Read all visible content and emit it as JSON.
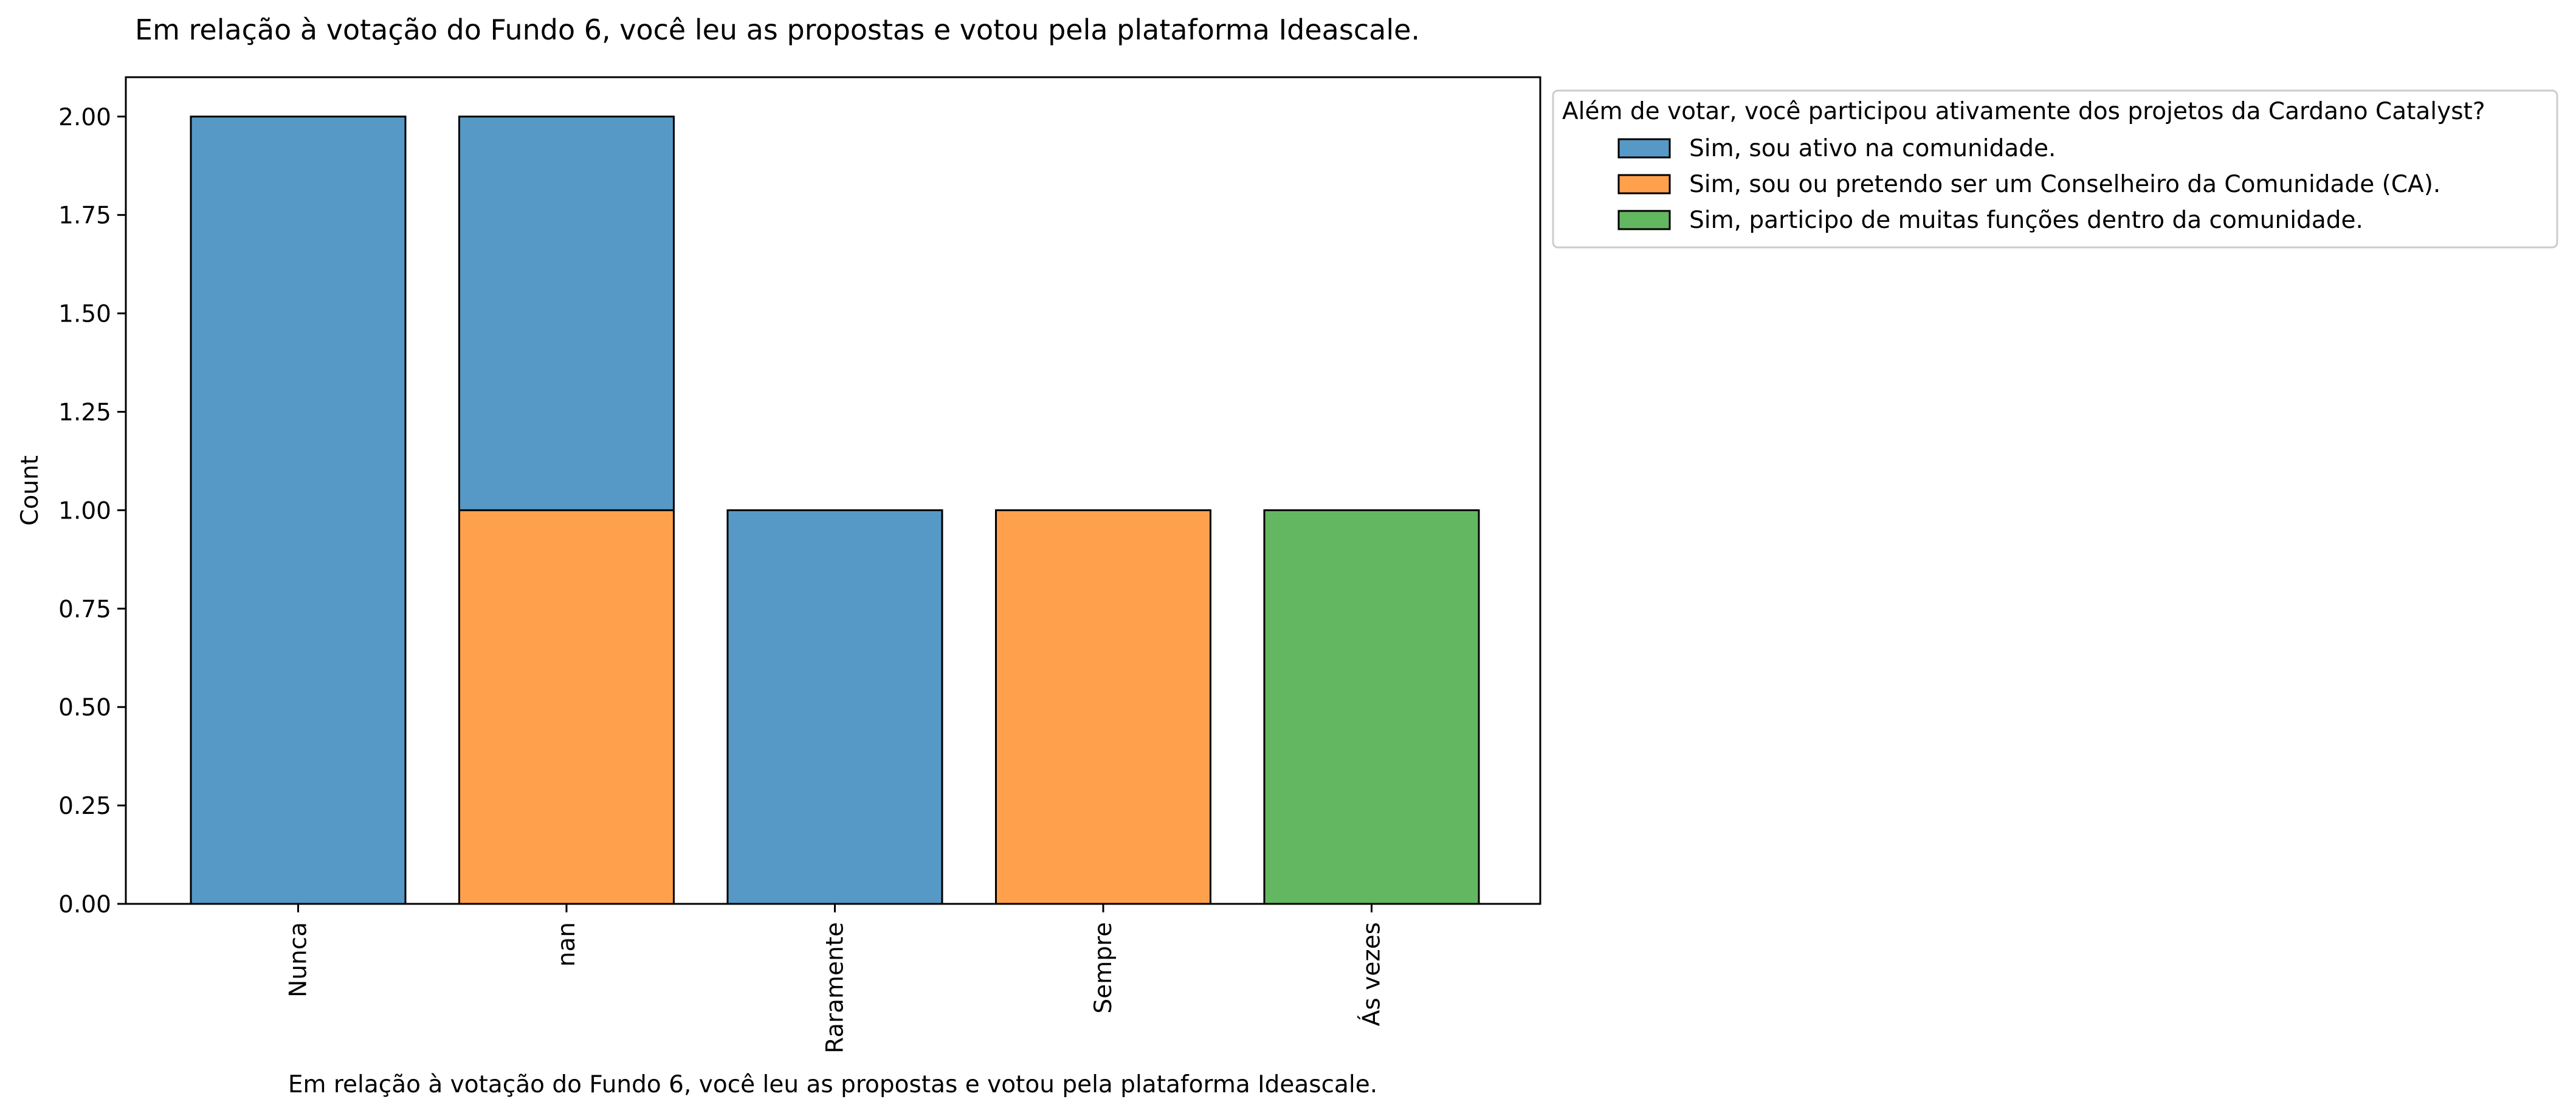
{
  "chart_data": {
    "type": "bar",
    "stacked": true,
    "title": "Em relação à votação do Fundo 6, você leu as propostas e votou pela plataforma Ideascale.",
    "xlabel": "Em relação à votação do Fundo 6, você leu as propostas e votou pela plataforma Ideascale.",
    "ylabel": "Count",
    "ylim": [
      0,
      2.1
    ],
    "yticks": [
      "0.00",
      "0.25",
      "0.50",
      "0.75",
      "1.00",
      "1.25",
      "1.50",
      "1.75",
      "2.00"
    ],
    "categories": [
      "Nunca",
      "nan",
      "Raramente",
      "Sempre",
      "Ás vezes"
    ],
    "legend": {
      "title": "Além de votar, você participou ativamente dos projetos da Cardano Catalyst?",
      "placement": "outside-upper-right"
    },
    "series": [
      {
        "name": "Sim, sou ativo na comunidade.",
        "color": "#5799c6",
        "values": [
          2,
          1,
          1,
          0,
          0
        ]
      },
      {
        "name": "Sim, sou ou pretendo ser um Conselheiro da Comunidade (CA).",
        "color": "#ffa04d",
        "values": [
          0,
          1,
          0,
          1,
          0
        ]
      },
      {
        "name": "Sim, participo de muitas funções dentro da comunidade.",
        "color": "#63b760",
        "values": [
          0,
          0,
          0,
          0,
          1
        ]
      }
    ],
    "stack_order": [
      1,
      0,
      2
    ],
    "grid": false
  }
}
